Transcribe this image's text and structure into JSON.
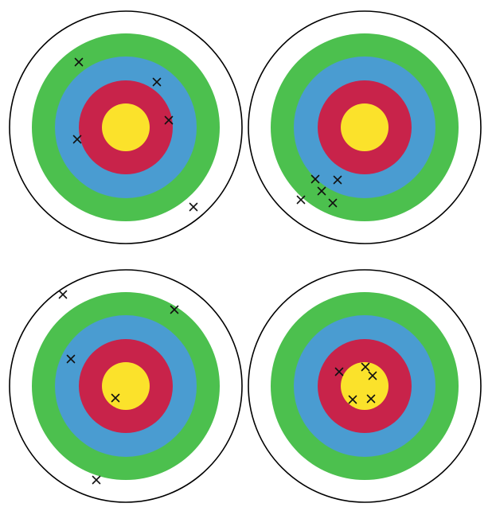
{
  "colors": {
    "background": "#ffffff",
    "outer_ring": "#ffffff",
    "outer_border": "#000000",
    "green": "#4cc04e",
    "blue": "#4a9cd1",
    "red": "#c8234a",
    "yellow": "#fbe22b",
    "mark": "#111111"
  },
  "rings": [
    "outer_ring",
    "green",
    "blue",
    "red",
    "yellow"
  ],
  "targets": [
    {
      "name": "target-top-left",
      "hits": 5
    },
    {
      "name": "target-top-right",
      "hits": 5
    },
    {
      "name": "target-bottom-left",
      "hits": 5
    },
    {
      "name": "target-bottom-right",
      "hits": 5
    }
  ]
}
